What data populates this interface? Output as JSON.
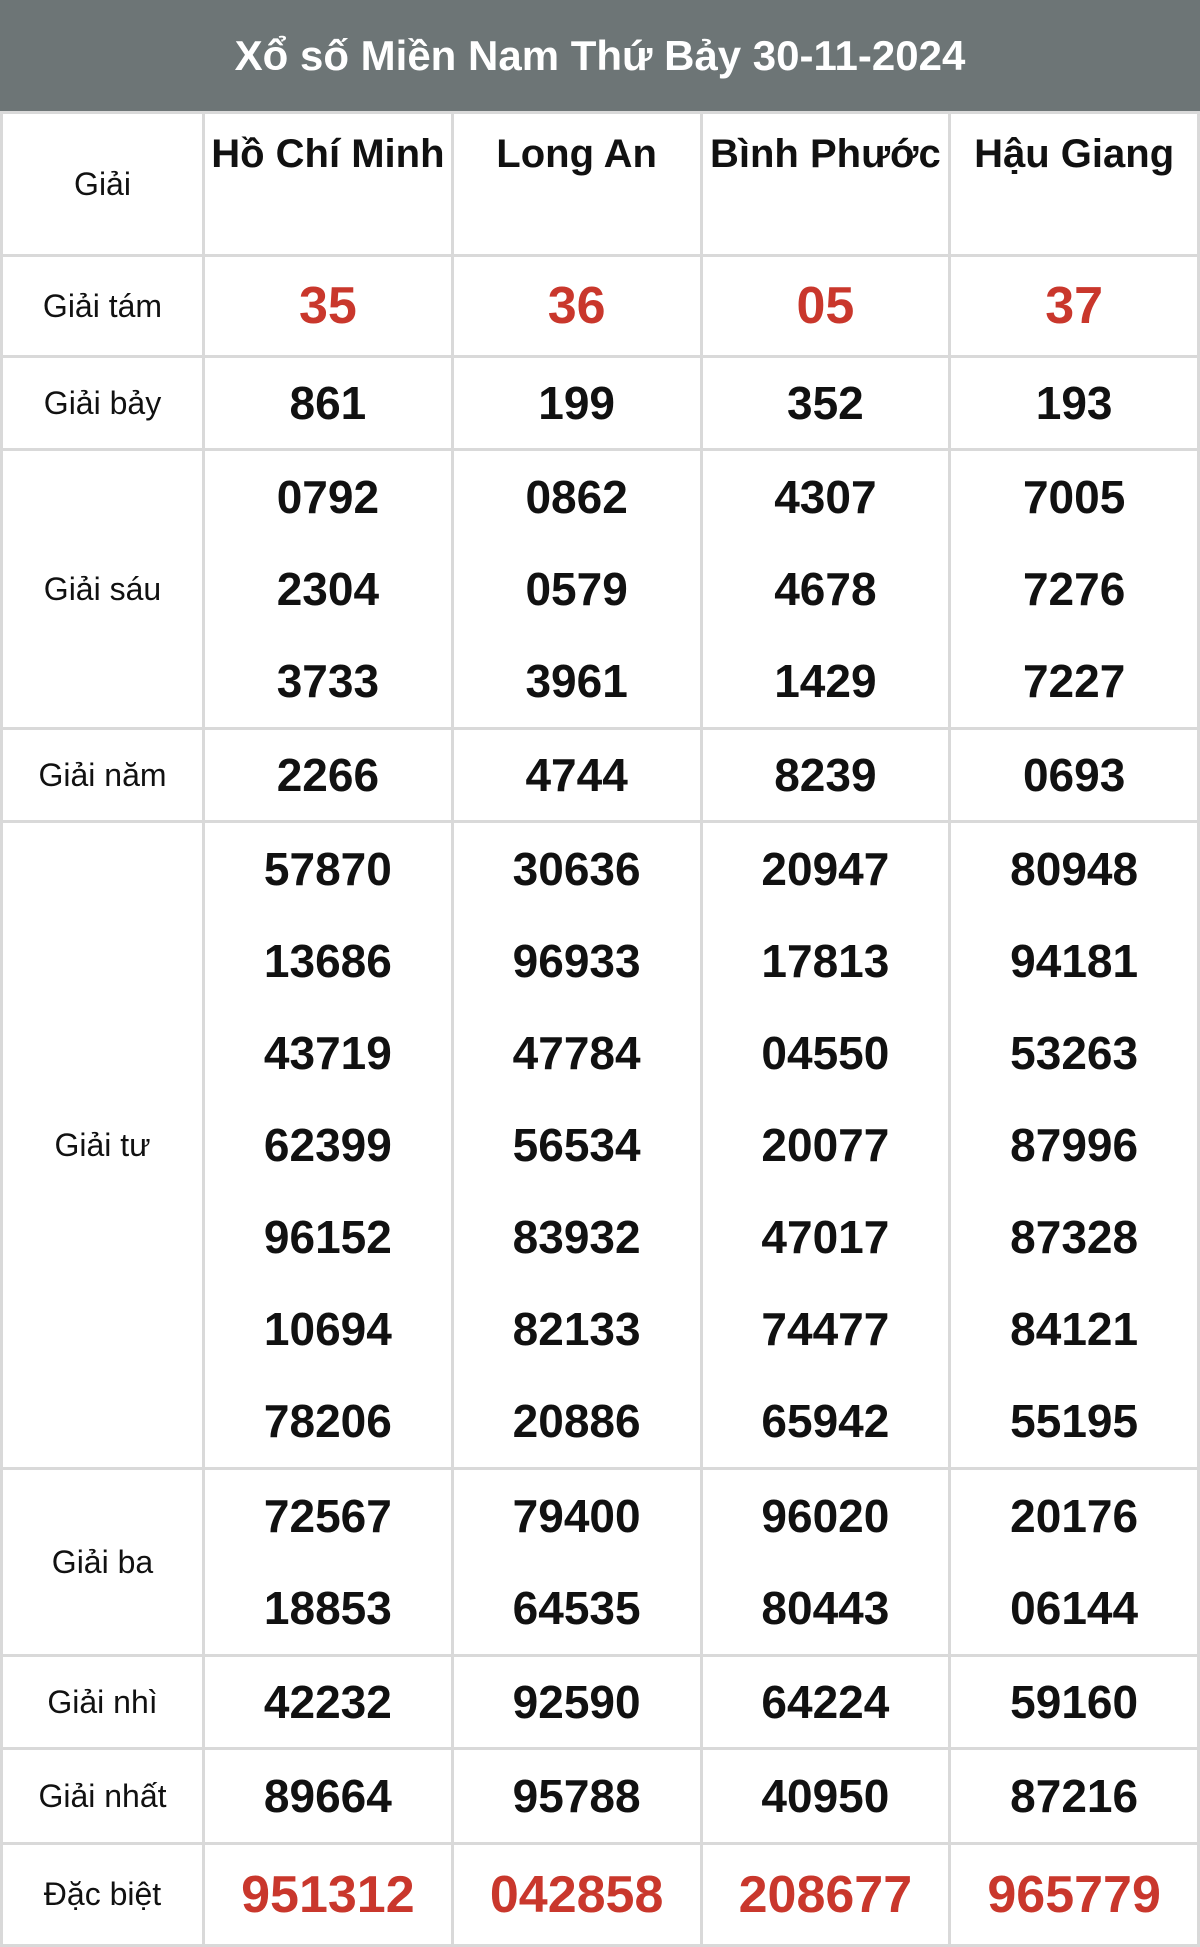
{
  "title": "Xổ số Miền Nam Thứ Bảy 30-11-2024",
  "header_label": "Giải",
  "provinces": [
    "Hồ Chí Minh",
    "Long An",
    "Bình Phước",
    "Hậu Giang"
  ],
  "accent_color": "#c9372c",
  "prizes": [
    {
      "label": "Giải tám",
      "highlight": true,
      "results": [
        [
          "35"
        ],
        [
          "36"
        ],
        [
          "05"
        ],
        [
          "37"
        ]
      ]
    },
    {
      "label": "Giải bảy",
      "results": [
        [
          "861"
        ],
        [
          "199"
        ],
        [
          "352"
        ],
        [
          "193"
        ]
      ]
    },
    {
      "label": "Giải sáu",
      "results": [
        [
          "0792",
          "2304",
          "3733"
        ],
        [
          "0862",
          "0579",
          "3961"
        ],
        [
          "4307",
          "4678",
          "1429"
        ],
        [
          "7005",
          "7276",
          "7227"
        ]
      ]
    },
    {
      "label": "Giải năm",
      "results": [
        [
          "2266"
        ],
        [
          "4744"
        ],
        [
          "8239"
        ],
        [
          "0693"
        ]
      ]
    },
    {
      "label": "Giải tư",
      "results": [
        [
          "57870",
          "13686",
          "43719",
          "62399",
          "96152",
          "10694",
          "78206"
        ],
        [
          "30636",
          "96933",
          "47784",
          "56534",
          "83932",
          "82133",
          "20886"
        ],
        [
          "20947",
          "17813",
          "04550",
          "20077",
          "47017",
          "74477",
          "65942"
        ],
        [
          "80948",
          "94181",
          "53263",
          "87996",
          "87328",
          "84121",
          "55195"
        ]
      ]
    },
    {
      "label": "Giải ba",
      "results": [
        [
          "72567",
          "18853"
        ],
        [
          "79400",
          "64535"
        ],
        [
          "96020",
          "80443"
        ],
        [
          "20176",
          "06144"
        ]
      ]
    },
    {
      "label": "Giải nhì",
      "results": [
        [
          "42232"
        ],
        [
          "92590"
        ],
        [
          "64224"
        ],
        [
          "59160"
        ]
      ]
    },
    {
      "label": "Giải nhất",
      "results": [
        [
          "89664"
        ],
        [
          "95788"
        ],
        [
          "40950"
        ],
        [
          "87216"
        ]
      ]
    },
    {
      "label": "Đặc biệt",
      "highlight": true,
      "results": [
        [
          "951312"
        ],
        [
          "042858"
        ],
        [
          "208677"
        ],
        [
          "965779"
        ]
      ]
    }
  ]
}
